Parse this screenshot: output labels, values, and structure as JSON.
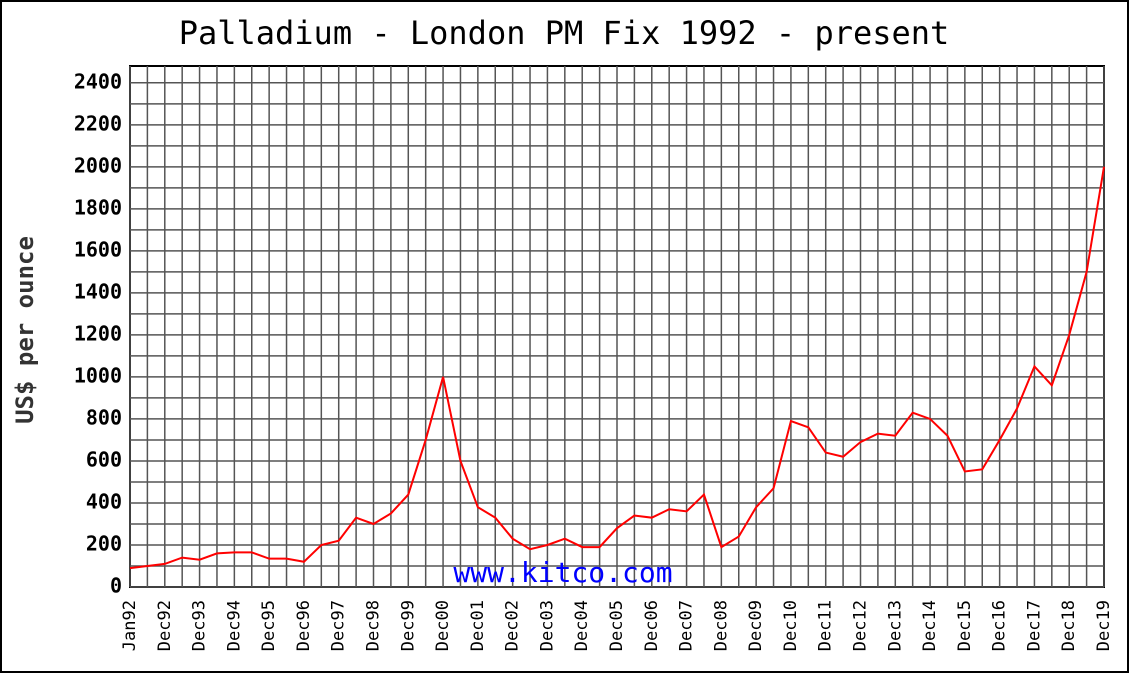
{
  "chart_data": {
    "type": "line",
    "title": "Palladium - London PM Fix 1992 - present",
    "y_label": "US$ per ounce",
    "watermark": "www.kitco.com",
    "categories": [
      "Jan92",
      null,
      "Dec92",
      null,
      "Dec93",
      null,
      "Dec94",
      null,
      "Dec95",
      null,
      "Dec96",
      null,
      "Dec97",
      null,
      "Dec98",
      null,
      "Dec99",
      null,
      "Dec00",
      null,
      "Dec01",
      null,
      "Dec02",
      null,
      "Dec03",
      null,
      "Dec04",
      null,
      "Dec05",
      null,
      "Dec06",
      null,
      "Dec07",
      null,
      "Dec08",
      null,
      "Dec09",
      null,
      "Dec10",
      null,
      "Dec11",
      null,
      "Dec12",
      null,
      "Dec13",
      null,
      "Dec14",
      null,
      "Dec15",
      null,
      "Dec16",
      null,
      "Dec17",
      null,
      "Dec18",
      null,
      "Dec19"
    ],
    "series": [
      {
        "name": "Palladium",
        "color": "#ff0000",
        "values": [
          90,
          100,
          110,
          140,
          130,
          160,
          165,
          165,
          135,
          135,
          120,
          200,
          220,
          330,
          300,
          350,
          440,
          700,
          1000,
          600,
          380,
          330,
          230,
          180,
          200,
          230,
          190,
          190,
          280,
          340,
          330,
          370,
          360,
          440,
          190,
          240,
          380,
          470,
          790,
          760,
          640,
          620,
          690,
          730,
          720,
          830,
          800,
          720,
          550,
          560,
          700,
          850,
          1050,
          960,
          1200,
          1500,
          2000
        ]
      }
    ],
    "ylim": [
      0,
      2480
    ],
    "yticks": [
      0,
      200,
      400,
      600,
      800,
      1000,
      1200,
      1400,
      1600,
      1800,
      2000,
      2200,
      2400
    ],
    "yminorticks": [
      100,
      300,
      500,
      700,
      900,
      1100,
      1300,
      1500,
      1700,
      1900,
      2100,
      2300
    ],
    "grid": true
  }
}
